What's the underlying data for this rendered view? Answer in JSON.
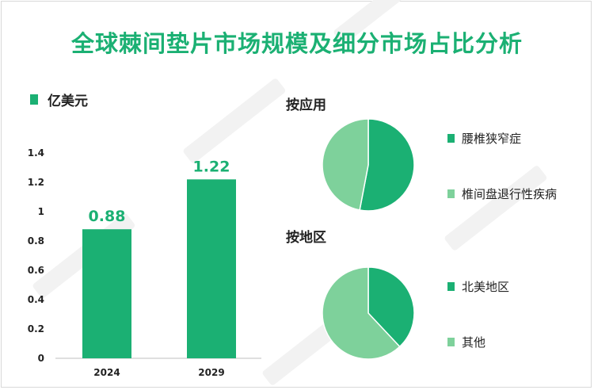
{
  "title": "全球棘间垫片市场规模及细分市场占比分析",
  "colors": {
    "primary": "#1bb073",
    "light": "#7ed19b",
    "text": "#222222"
  },
  "chart_data": [
    {
      "type": "bar",
      "title": "",
      "legend": "亿美元",
      "categories": [
        "2024",
        "2029"
      ],
      "values": [
        0.88,
        1.22
      ],
      "value_labels": [
        "0.88",
        "1.22"
      ],
      "yticks": [
        "0",
        "0.2",
        "0.4",
        "0.6",
        "0.8",
        "1",
        "1.2",
        "1.4"
      ],
      "ylim": [
        0,
        1.4
      ]
    },
    {
      "type": "pie",
      "title": "按应用",
      "labels": [
        "腰椎狭窄症",
        "椎间盘退行性疾病"
      ],
      "values": [
        53,
        47
      ],
      "colors": [
        "#1bb073",
        "#7ed19b"
      ]
    },
    {
      "type": "pie",
      "title": "按地区",
      "labels": [
        "北美地区",
        "其他"
      ],
      "values": [
        38,
        62
      ],
      "colors": [
        "#1bb073",
        "#7ed19b"
      ]
    }
  ]
}
